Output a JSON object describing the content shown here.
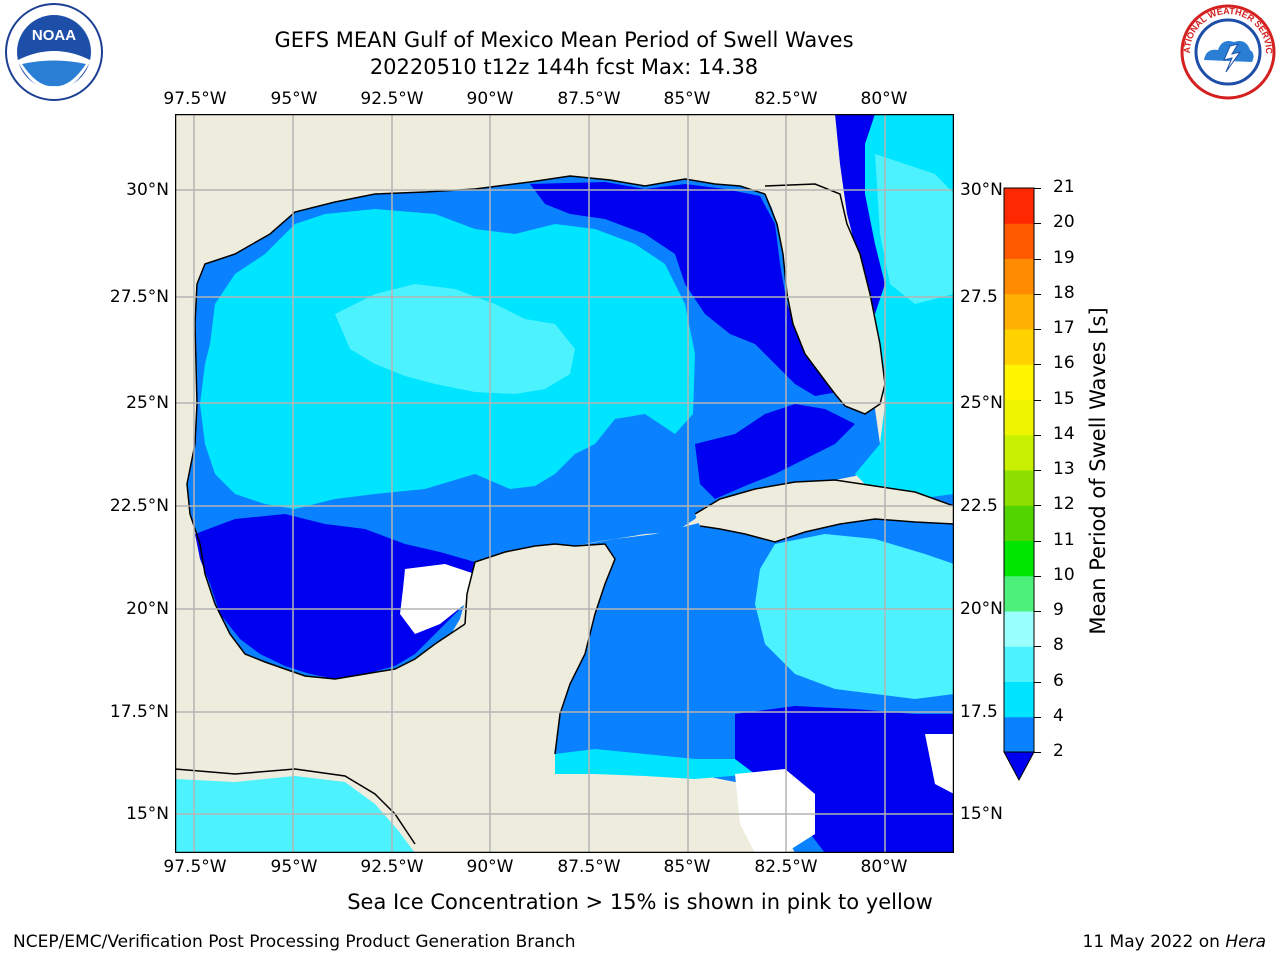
{
  "header": {
    "title_line1": "GEFS MEAN Gulf of Mexico Mean Period of Swell Waves",
    "title_line2": "20220510 t12z 144h fcst   Max: 14.38"
  },
  "logos": {
    "left": {
      "name": "noaa-logo",
      "text": "NOAA"
    },
    "right": {
      "name": "nws-logo",
      "text": "NATIONAL WEATHER SERVICE"
    }
  },
  "map": {
    "lon_labels": [
      "97.5°W",
      "95°W",
      "92.5°W",
      "90°W",
      "87.5°W",
      "85°W",
      "82.5°W",
      "80°W"
    ],
    "lat_labels": [
      "30°N",
      "27.5°N",
      "25°N",
      "22.5°N",
      "20°N",
      "17.5°N",
      "15°N"
    ],
    "right_lat_labels": [
      "30°N",
      "27.5",
      "25°N",
      "22.5",
      "20°N",
      "17.5",
      "15°N"
    ],
    "colors": {
      "land": "#eeecdc",
      "no_data": "#ffffff",
      "grid": "#b4b4b4",
      "coast": "#000000"
    }
  },
  "colorbar": {
    "label": "Mean Period of Swell Waves [s]",
    "ticks": [
      "2",
      "4",
      "6",
      "8",
      "9",
      "10",
      "11",
      "12",
      "13",
      "14",
      "15",
      "16",
      "17",
      "18",
      "19",
      "20",
      "21"
    ],
    "colors": [
      "#0a82ff",
      "#00e5ff",
      "#4df2ff",
      "#9affff",
      "#4cf07a",
      "#00e600",
      "#52d400",
      "#8ee000",
      "#c8f000",
      "#eef500",
      "#fff500",
      "#ffd200",
      "#ffb000",
      "#ff8c00",
      "#ff5a00",
      "#ff2800"
    ],
    "under_color": "#0000f0"
  },
  "caption": "Sea Ice Concentration > 15% is shown in pink to yellow",
  "footer": {
    "left": "NCEP/EMC/Verification Post Processing Product Generation Branch",
    "right_date": "11 May 2022 on",
    "right_host": "Hera"
  }
}
